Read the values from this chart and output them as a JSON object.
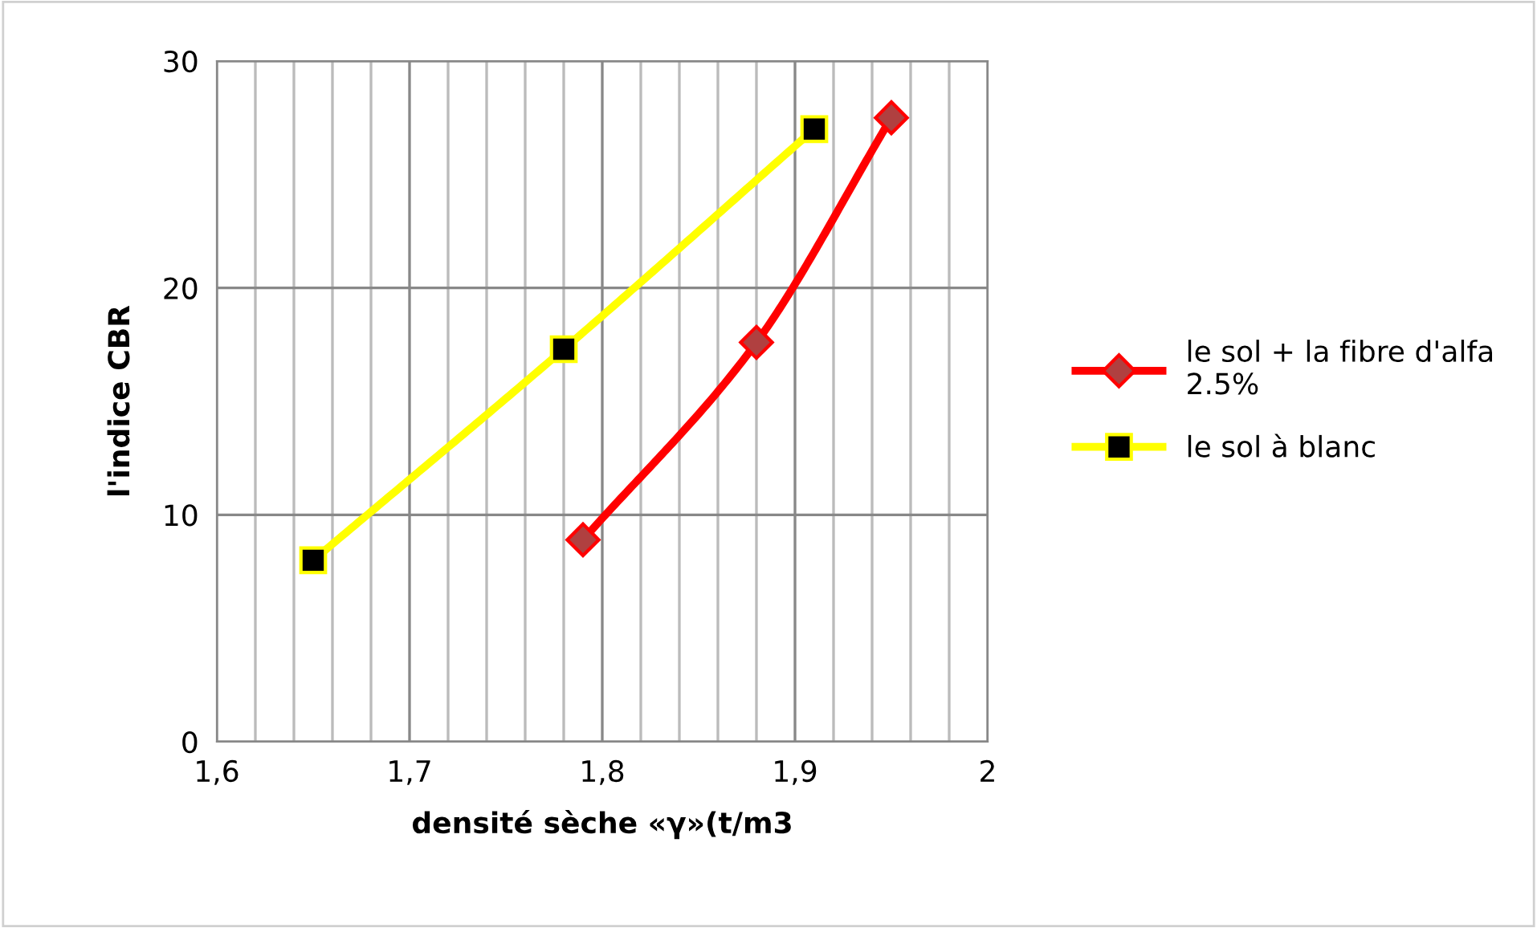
{
  "chart_data": {
    "type": "line",
    "xlabel": "densité sèche «γ»(t/m3",
    "ylabel": "l'indice CBR",
    "series": [
      {
        "name": "le sol + la fibre d'alfa\n2.5%",
        "color": "#ff0000",
        "marker": "diamond",
        "x": [
          1.79,
          1.88,
          1.95
        ],
        "values": [
          8.9,
          17.6,
          27.5
        ]
      },
      {
        "name": "le sol à blanc",
        "color": "#ffff00",
        "marker": "square",
        "x": [
          1.65,
          1.78,
          1.91
        ],
        "values": [
          8.0,
          17.3,
          27.0
        ]
      }
    ],
    "xlim": [
      1.6,
      2.0
    ],
    "xticks": [
      {
        "value": 1.6,
        "label": "1,6"
      },
      {
        "value": 1.62,
        "label": null
      },
      {
        "value": 1.64,
        "label": null
      },
      {
        "value": 1.66,
        "label": null
      },
      {
        "value": 1.68,
        "label": null
      },
      {
        "value": 1.7,
        "label": "1,7"
      },
      {
        "value": 1.72,
        "label": null
      },
      {
        "value": 1.74,
        "label": null
      },
      {
        "value": 1.76,
        "label": null
      },
      {
        "value": 1.78,
        "label": null
      },
      {
        "value": 1.8,
        "label": "1,8"
      },
      {
        "value": 1.82,
        "label": null
      },
      {
        "value": 1.84,
        "label": null
      },
      {
        "value": 1.86,
        "label": null
      },
      {
        "value": 1.88,
        "label": null
      },
      {
        "value": 1.9,
        "label": "1,9"
      },
      {
        "value": 1.92,
        "label": null
      },
      {
        "value": 1.94,
        "label": null
      },
      {
        "value": 1.96,
        "label": null
      },
      {
        "value": 1.98,
        "label": null
      },
      {
        "value": 2.0,
        "label": "2"
      }
    ],
    "ylim": [
      0,
      30
    ],
    "yticks": [
      0,
      10,
      20,
      30
    ],
    "grid": true,
    "legend": "right"
  }
}
